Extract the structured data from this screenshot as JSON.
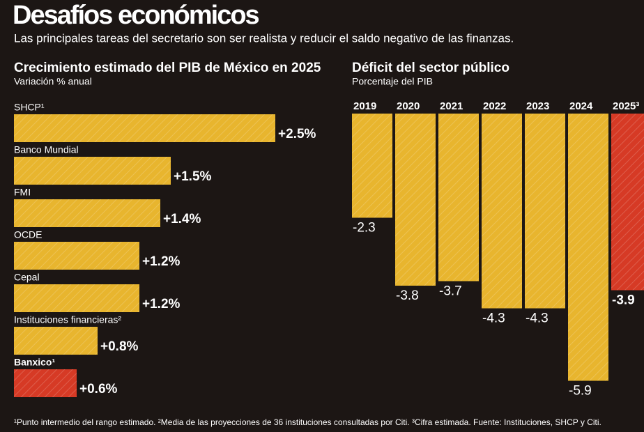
{
  "title": "Desafíos económicos",
  "subtitle": "Las principales tareas del secretario son ser realista y reducir el saldo negativo de las finanzas.",
  "footnote": "¹Punto intermedio del rango estimado. ²Media de las proyecciones de 36 instituciones consultadas por Citi. ³Cifra estimada. Fuente: Instituciones, SHCP y Citi.",
  "chart_data": [
    {
      "type": "barh",
      "title": "Crecimiento estimado del PIB de México en 2025",
      "subtitle": "Variación % anual",
      "categories": [
        "SHCP¹",
        "Banco Mundial",
        "FMI",
        "OCDE",
        "Cepal",
        "Instituciones financieras²",
        "Banxico¹"
      ],
      "values": [
        2.5,
        1.5,
        1.4,
        1.2,
        1.2,
        0.8,
        0.6
      ],
      "value_labels": [
        "+2.5%",
        "+1.5%",
        "+1.4%",
        "+1.2%",
        "+1.2%",
        "+0.8%",
        "+0.6%"
      ],
      "colors": [
        "#e8b52e",
        "#e8b52e",
        "#e8b52e",
        "#e8b52e",
        "#e8b52e",
        "#e8b52e",
        "#d63a25"
      ]
    },
    {
      "type": "bar",
      "title": "Déficit del sector público",
      "subtitle": "Porcentaje del PIB",
      "categories": [
        "2019",
        "2020",
        "2021",
        "2022",
        "2023",
        "2024",
        "2025³"
      ],
      "values": [
        -2.3,
        -3.8,
        -3.7,
        -4.3,
        -4.3,
        -5.9,
        -3.9
      ],
      "colors": [
        "#e8b52e",
        "#e8b52e",
        "#e8b52e",
        "#e8b52e",
        "#e8b52e",
        "#e8b52e",
        "#d63a25"
      ]
    }
  ]
}
